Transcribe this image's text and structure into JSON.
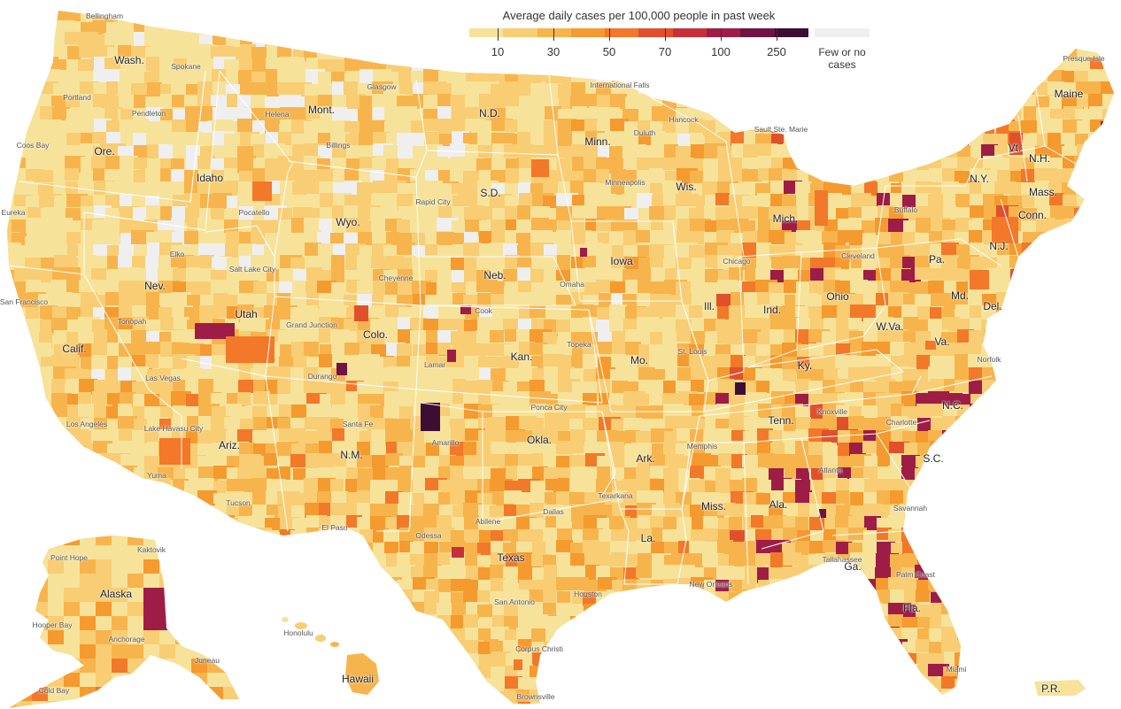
{
  "legend": {
    "title": "Average daily cases per 100,000 people in past week",
    "colors": [
      "#f7e29a",
      "#f8cd73",
      "#f7b44d",
      "#f59a2f",
      "#f2782a",
      "#e0512b",
      "#c6303a",
      "#9e1d47",
      "#6e1343",
      "#3d0e33"
    ],
    "tick_labels": [
      "10",
      "30",
      "50",
      "70",
      "100",
      "250"
    ],
    "no_data_label_1": "Few or no",
    "no_data_label_2": "cases",
    "no_data_color": "#efefef"
  },
  "states": [
    "Wash.",
    "Ore.",
    "Calif.",
    "Idaho",
    "Nev.",
    "Mont.",
    "Wyo.",
    "Utah",
    "Ariz.",
    "Colo.",
    "N.M.",
    "N.D.",
    "S.D.",
    "Neb.",
    "Kan.",
    "Okla.",
    "Texas",
    "Minn.",
    "Iowa",
    "Mo.",
    "Ark.",
    "La.",
    "Wis.",
    "Ill.",
    "Mich.",
    "Ind.",
    "Ohio",
    "Ky.",
    "Tenn.",
    "Miss.",
    "Ala.",
    "Ga.",
    "Fla.",
    "S.C.",
    "N.C.",
    "Va.",
    "W.Va.",
    "Md.",
    "Del.",
    "Pa.",
    "N.J.",
    "N.Y.",
    "Conn.",
    "Mass.",
    "Vt.",
    "N.H.",
    "Maine",
    "Alaska",
    "Hawaii",
    "P.R."
  ],
  "cities": [
    "Bellingham",
    "Spokane",
    "Portland",
    "Pendleton",
    "Coos Bay",
    "Eureka",
    "San Francisco",
    "Helena",
    "Billings",
    "Glasgow",
    "Pocatello",
    "Elko",
    "Salt Lake City",
    "Rapid City",
    "Cheyenne",
    "Tonopah",
    "Grand Junction",
    "Cook",
    "Omaha",
    "Durango",
    "Lamar",
    "Topeka",
    "Las Vegas",
    "Los Angeles",
    "Lake Havasu City",
    "Yuma",
    "Santa Fe",
    "Amarillo",
    "Ponca City",
    "Tucson",
    "El Paso",
    "Odessa",
    "Abilene",
    "Dallas",
    "Texarkana",
    "Houston",
    "San Antonio",
    "Corpus Christi",
    "Brownsville",
    "International Falls",
    "Duluth",
    "Minneapolis",
    "Hancock",
    "Sault Ste. Marie",
    "Chicago",
    "St. Louis",
    "Memphis",
    "New Orleans",
    "Knoxville",
    "Atlanta",
    "Charlotte",
    "Savannah",
    "Tallahassee",
    "Palm Coast",
    "Miami",
    "Cleveland",
    "Norfolk",
    "Buffalo",
    "Presque Isle",
    "Point Hope",
    "Kaktovik",
    "Hooper Bay",
    "Anchorage",
    "Juneau",
    "Cold Bay",
    "Honolulu"
  ]
}
